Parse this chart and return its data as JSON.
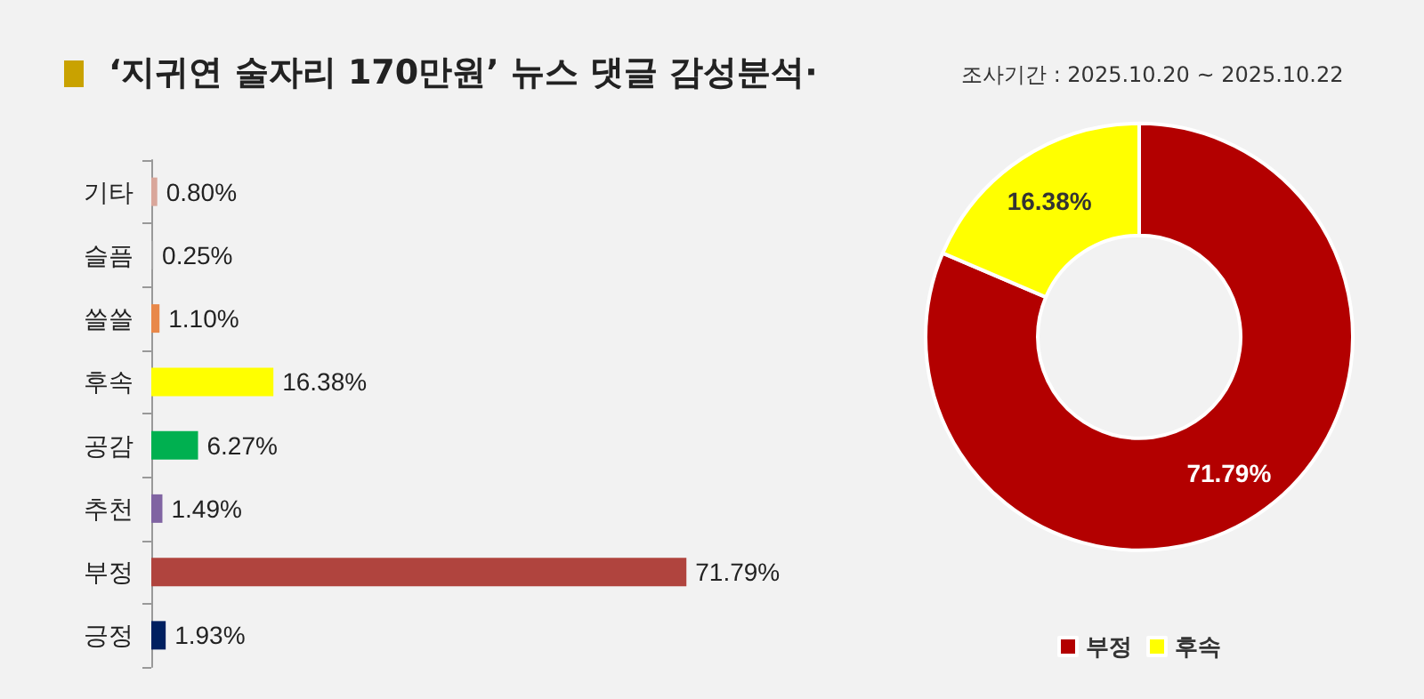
{
  "chart_data": [
    {
      "type": "bar",
      "orientation": "horizontal",
      "title": "‘지귀연 술자리 170만원’ 뉴스 댓글 감성분석·",
      "categories": [
        "기타",
        "슬픔",
        "쓸쓸",
        "후속",
        "공감",
        "추천",
        "부정",
        "긍정"
      ],
      "values": [
        0.8,
        0.25,
        1.1,
        16.38,
        6.27,
        1.49,
        71.79,
        1.93
      ],
      "value_labels": [
        "0.80%",
        "0.25%",
        "1.10%",
        "16.38%",
        "6.27%",
        "1.49%",
        "71.79%",
        "1.93%"
      ],
      "colors": [
        "#d9a79b",
        "#a5a5a5",
        "#e8884a",
        "#ffff00",
        "#00b050",
        "#8064a2",
        "#b0443e",
        "#002060"
      ],
      "legend": false,
      "grid": false
    },
    {
      "type": "donut",
      "subtitle": "조사기간 : 2025.10.20 ~ 2025.10.22",
      "categories": [
        "부정",
        "후속"
      ],
      "values": [
        71.79,
        16.38
      ],
      "value_labels": [
        "71.79%",
        "16.38%"
      ],
      "colors": [
        "#b30000",
        "#ffff00"
      ],
      "legend": "bottom"
    }
  ]
}
